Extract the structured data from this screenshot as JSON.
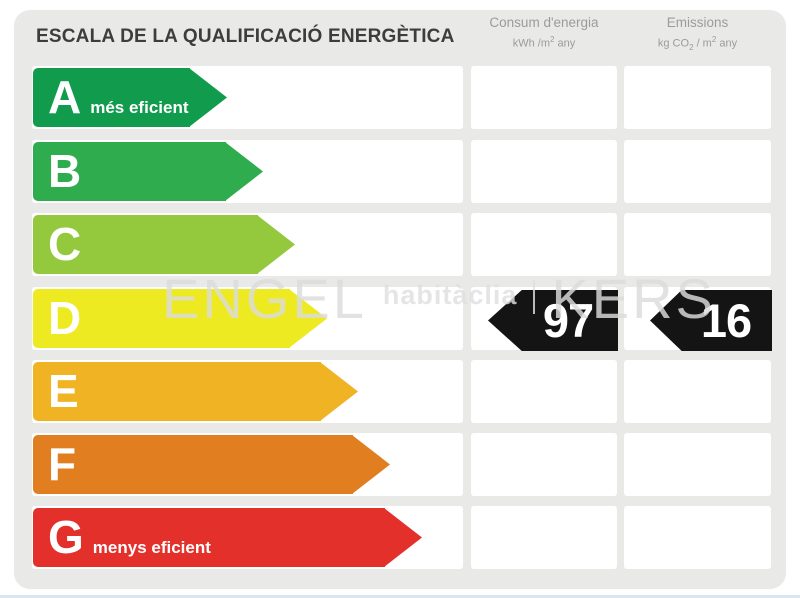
{
  "title": "ESCALA DE LA QUALIFICACIÓ ENERGÈTICA",
  "headers": {
    "consum": {
      "title": "Consum d'energia",
      "unit_pre": "kWh /m",
      "unit_sup": "2",
      "unit_post": " any"
    },
    "emissions": {
      "title": "Emissions",
      "unit_pre": "kg CO",
      "unit_sub": "2",
      "unit_mid": " / m",
      "unit_sup": "2",
      "unit_post": " any"
    }
  },
  "scale": {
    "ratings": [
      {
        "letter": "A",
        "label": "més eficient",
        "color": "#119c4d",
        "arrow_width": 194
      },
      {
        "letter": "B",
        "label": "",
        "color": "#2fad4e",
        "arrow_width": 230
      },
      {
        "letter": "C",
        "label": "",
        "color": "#94c83d",
        "arrow_width": 262
      },
      {
        "letter": "D",
        "label": "",
        "color": "#edea21",
        "arrow_width": 294
      },
      {
        "letter": "E",
        "label": "",
        "color": "#f0b324",
        "arrow_width": 325
      },
      {
        "letter": "F",
        "label": "",
        "color": "#e17f20",
        "arrow_width": 357
      },
      {
        "letter": "G",
        "label": "menys eficient",
        "color": "#e4302b",
        "arrow_width": 389
      }
    ]
  },
  "values": {
    "rating": "D",
    "consum": "97",
    "emissions": "16",
    "badge_color": "#141414"
  },
  "watermark": {
    "part1": "ENGEL",
    "part2": "habitàclia",
    "part3": "KERS"
  },
  "chart_data": {
    "type": "bar",
    "title": "ESCALA DE LA QUALIFICACIÓ ENERGÈTICA",
    "categories": [
      "A",
      "B",
      "C",
      "D",
      "E",
      "F",
      "G"
    ],
    "series": [
      {
        "name": "scale-arrow-length-px",
        "values": [
          194,
          230,
          262,
          294,
          325,
          357,
          389
        ]
      }
    ],
    "bar_colors": [
      "#119c4d",
      "#2fad4e",
      "#94c83d",
      "#edea21",
      "#f0b324",
      "#e17f20",
      "#e4302b"
    ],
    "annotations": [
      {
        "row": "A",
        "text": "més eficient"
      },
      {
        "row": "G",
        "text": "menys eficient"
      },
      {
        "row": "D",
        "column": "Consum d'energia kWh/m2 any",
        "value": 97
      },
      {
        "row": "D",
        "column": "Emissions kg CO2/m2 any",
        "value": 16
      }
    ],
    "assigned_rating": "D",
    "orientation": "horizontal",
    "legend": "off",
    "grid": "off"
  }
}
